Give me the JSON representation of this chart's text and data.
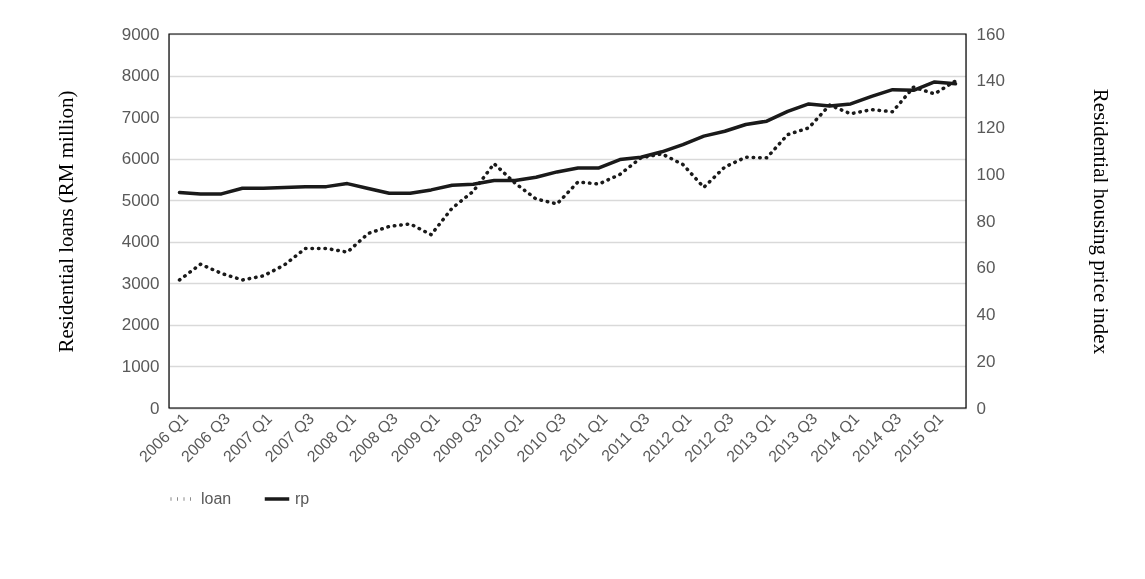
{
  "chart_data": {
    "type": "line",
    "ylabel": "Residential loans (RM million)",
    "y2label": "Residential housing price index",
    "categories": [
      "2006 Q1",
      null,
      "2006 Q3",
      null,
      "2007 Q1",
      null,
      "2007 Q3",
      null,
      "2008 Q1",
      null,
      "2008 Q3",
      null,
      "2009 Q1",
      null,
      "2009 Q3",
      null,
      "2010 Q1",
      null,
      "2010 Q3",
      null,
      "2011 Q1",
      null,
      "2011 Q3",
      null,
      "2012 Q1",
      null,
      "2012 Q3",
      null,
      "2013 Q1",
      null,
      "2013 Q3",
      null,
      "2014 Q1",
      null,
      "2014 Q3",
      null,
      "2015 Q1",
      null
    ],
    "series": [
      {
        "name": "loan",
        "color": "#1a1a1a",
        "line_style": "dotted",
        "values": [
          3080,
          3460,
          3240,
          3080,
          3180,
          3440,
          3840,
          3840,
          3750,
          4200,
          4370,
          4430,
          4170,
          4810,
          5210,
          5880,
          5410,
          5030,
          4910,
          5440,
          5390,
          5620,
          6020,
          6115,
          5860,
          5310,
          5800,
          6035,
          6020,
          6580,
          6740,
          7290,
          7080,
          7180,
          7130,
          7720,
          7560,
          7870
        ]
      },
      {
        "name": "rp",
        "color": "#1a1a1a",
        "line_style": "solid",
        "axis": "y2",
        "values": [
          92.2,
          91.6,
          91.6,
          94.0,
          94.0,
          94.3,
          94.7,
          94.7,
          96.0,
          93.9,
          91.9,
          91.9,
          93.3,
          95.3,
          95.7,
          97.3,
          97.3,
          98.7,
          101.0,
          102.7,
          102.7,
          106.3,
          107.3,
          109.6,
          112.7,
          116.3,
          118.4,
          121.3,
          122.7,
          126.9,
          130.1,
          129.2,
          130.1,
          133.3,
          136.2,
          135.9,
          139.5,
          138.7
        ]
      }
    ],
    "ylim": [
      0,
      9000
    ],
    "yticks": [
      0,
      1000,
      2000,
      3000,
      4000,
      5000,
      6000,
      7000,
      8000,
      9000
    ],
    "y2lim": [
      0,
      160
    ],
    "y2ticks": [
      0,
      20,
      40,
      60,
      80,
      100,
      120,
      140,
      160
    ],
    "grid": "y",
    "legend": "bottom",
    "marker": "none"
  }
}
